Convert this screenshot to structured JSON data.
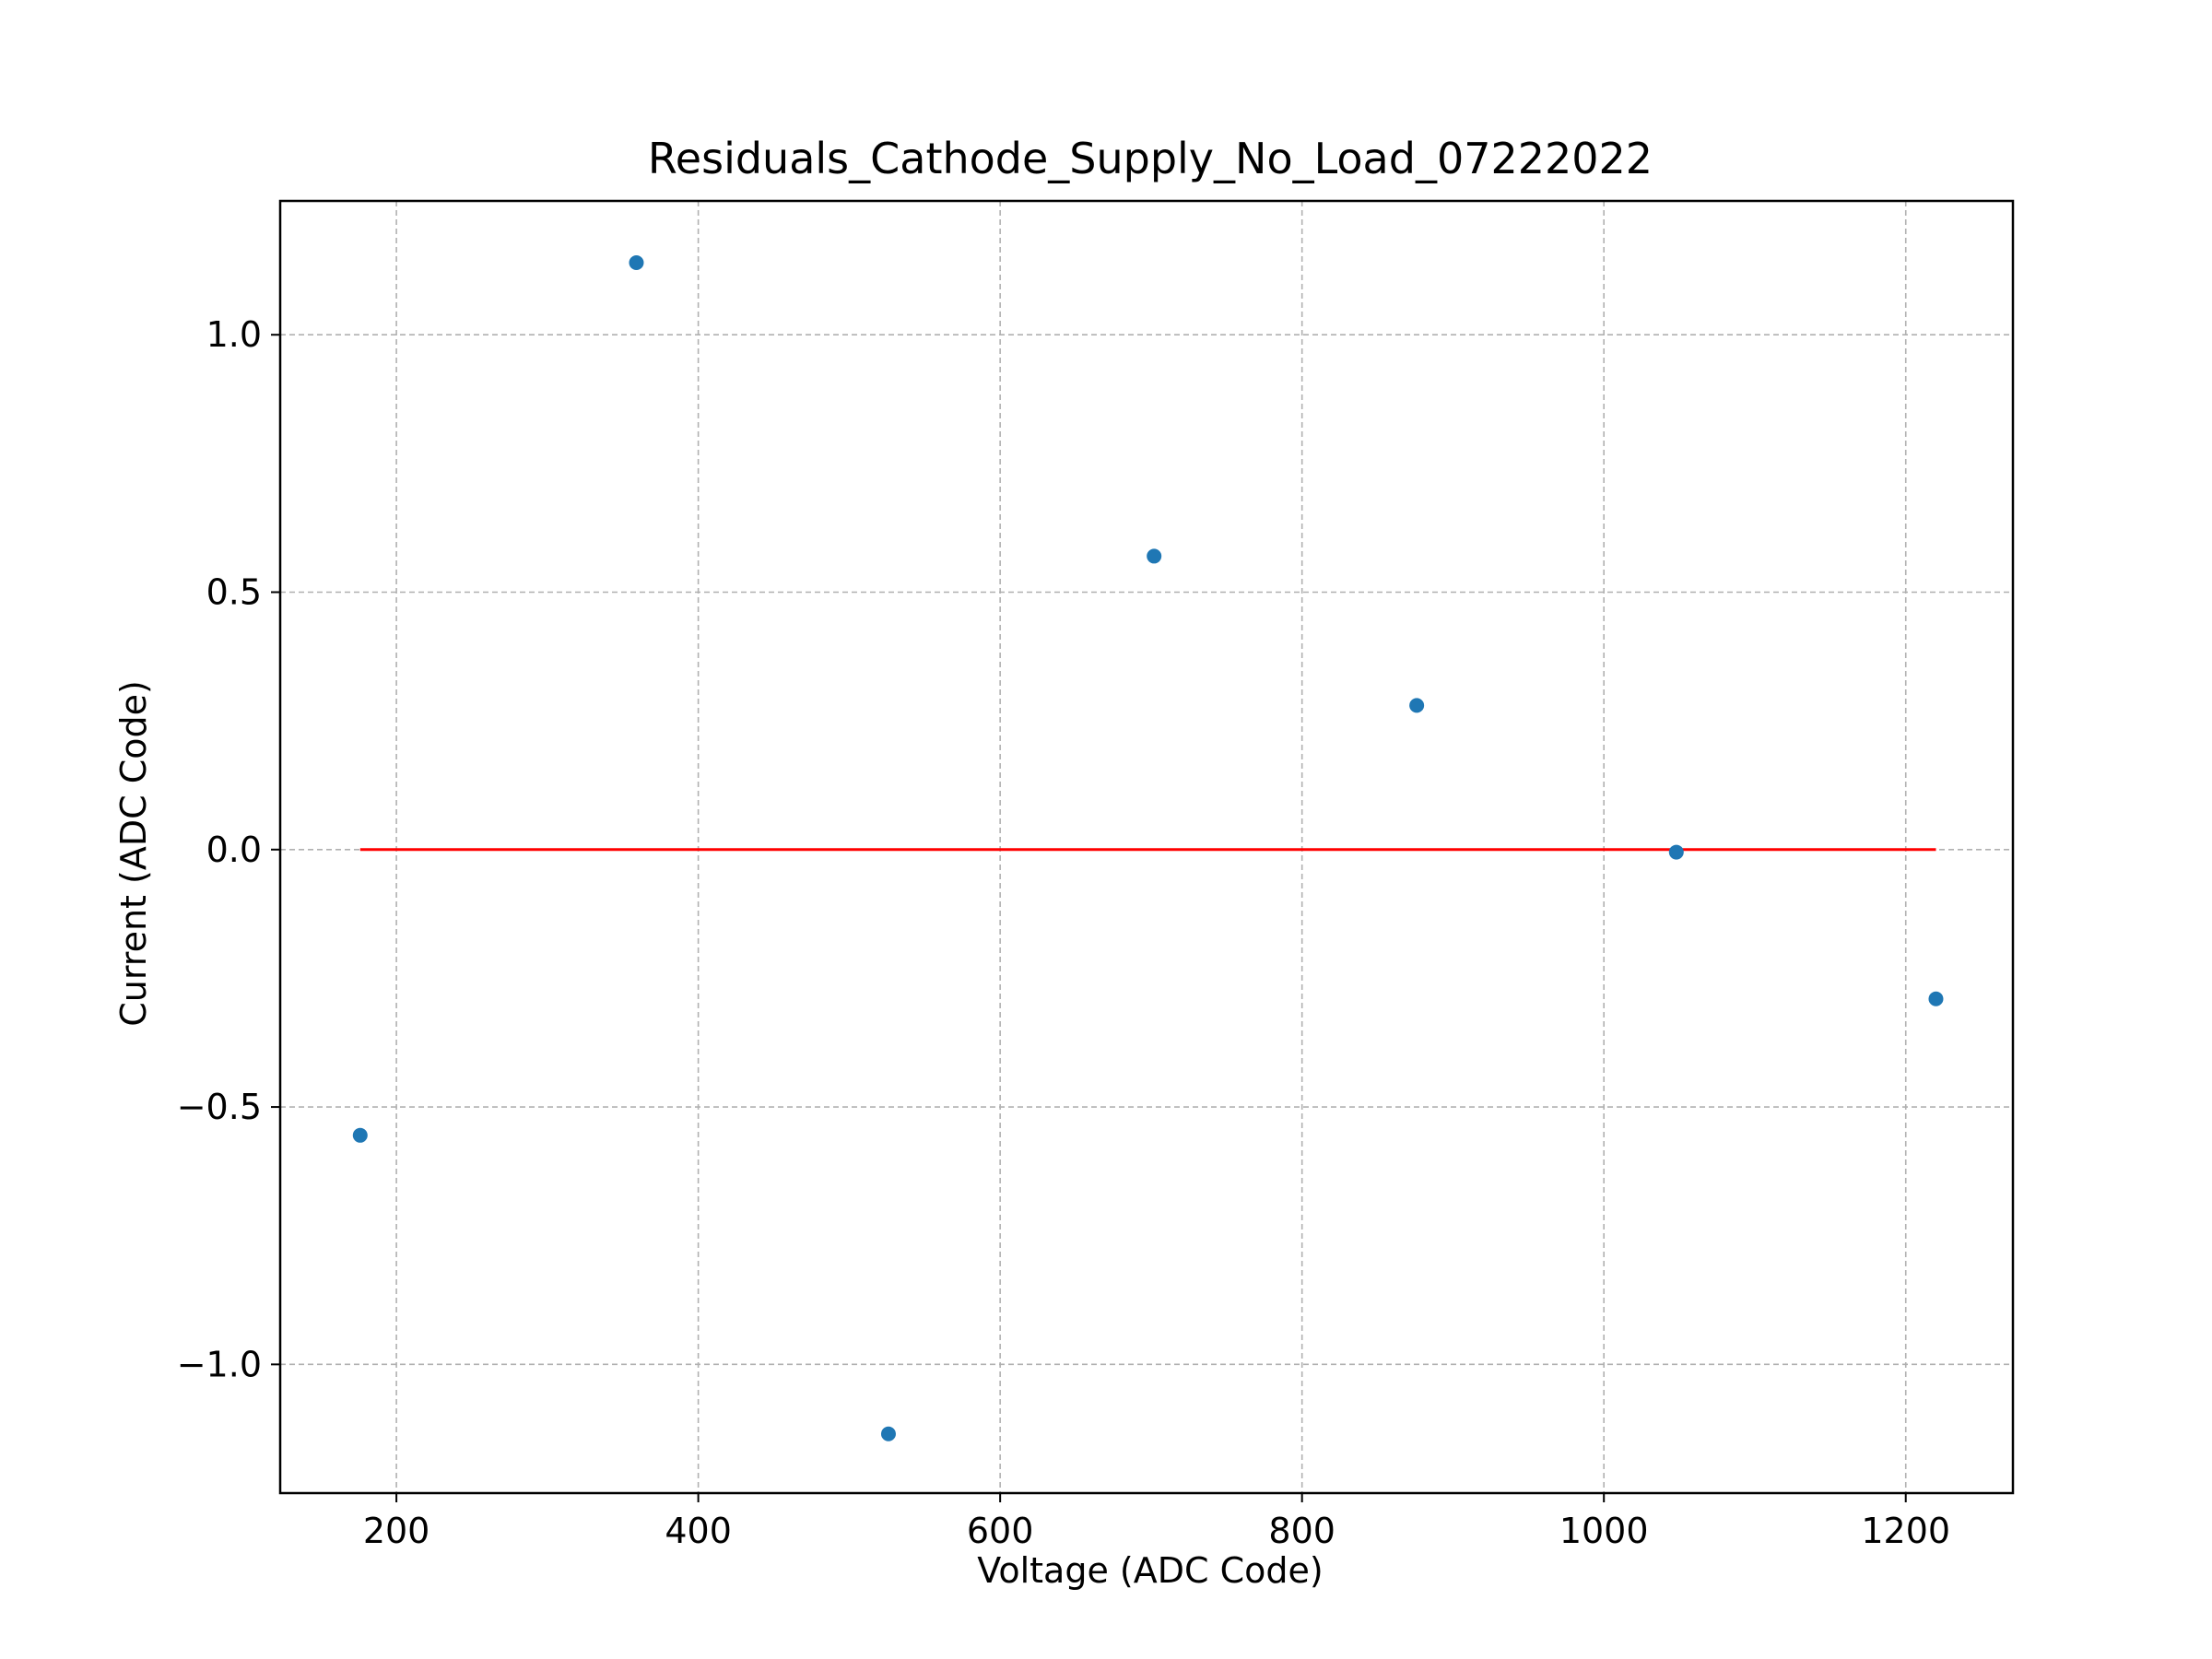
{
  "chart_data": {
    "type": "scatter",
    "title": "Residuals_Cathode_Supply_No_Load_07222022",
    "xlabel": "Voltage (ADC Code)",
    "ylabel": "Current (ADC Code)",
    "xlim": [
      123,
      1271
    ],
    "ylim": [
      -1.25,
      1.26
    ],
    "xticks": [
      200,
      400,
      600,
      800,
      1000,
      1200
    ],
    "xtick_labels": [
      "200",
      "400",
      "600",
      "800",
      "1000",
      "1200"
    ],
    "yticks": [
      -1.0,
      -0.5,
      0.0,
      0.5,
      1.0
    ],
    "ytick_labels": [
      "−1.0",
      "−0.5",
      "0.0",
      "0.5",
      "1.0"
    ],
    "grid": true,
    "series": [
      {
        "type": "scatter",
        "color": "#1f77b4",
        "x": [
          176,
          359,
          526,
          702,
          876,
          1048,
          1220
        ],
        "y": [
          -0.555,
          1.14,
          -1.135,
          0.57,
          0.28,
          -0.005,
          -0.29
        ]
      },
      {
        "type": "line",
        "color": "#ff0000",
        "x": [
          176,
          1220
        ],
        "y": [
          0.0,
          0.0
        ]
      }
    ]
  }
}
